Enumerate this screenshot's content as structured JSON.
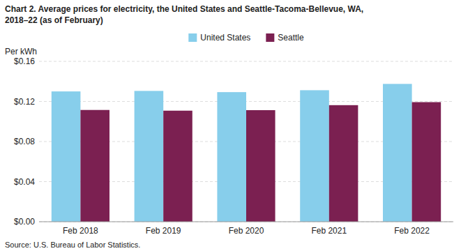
{
  "chart_data": {
    "type": "bar",
    "title": "Chart 2. Average prices for electricity, the United States and Seattle-Tacoma-Bellevue, WA,",
    "subtitle": "2018–22 (as of February)",
    "y_label": "Per kWh",
    "source": "Source: U.S. Bureau of Labor Statistics.",
    "categories": [
      "Feb 2018",
      "Feb 2019",
      "Feb 2020",
      "Feb 2021",
      "Feb 2022"
    ],
    "series": [
      {
        "name": "United States",
        "color": "#87CEEB",
        "values": [
          0.13,
          0.1305,
          0.1293,
          0.1312,
          0.1375
        ]
      },
      {
        "name": "Seattle",
        "color": "#7B2051",
        "values": [
          0.1115,
          0.1108,
          0.1113,
          0.1163,
          0.1193
        ]
      }
    ],
    "ylim": [
      0.0,
      0.16
    ],
    "yticks": [
      {
        "value": 0.0,
        "label": "$0.00"
      },
      {
        "value": 0.04,
        "label": "$0.04"
      },
      {
        "value": 0.08,
        "label": "$0.08"
      },
      {
        "value": 0.12,
        "label": "$0.12"
      },
      {
        "value": 0.16,
        "label": "$0.16"
      }
    ],
    "grid": true,
    "legend": "top"
  }
}
